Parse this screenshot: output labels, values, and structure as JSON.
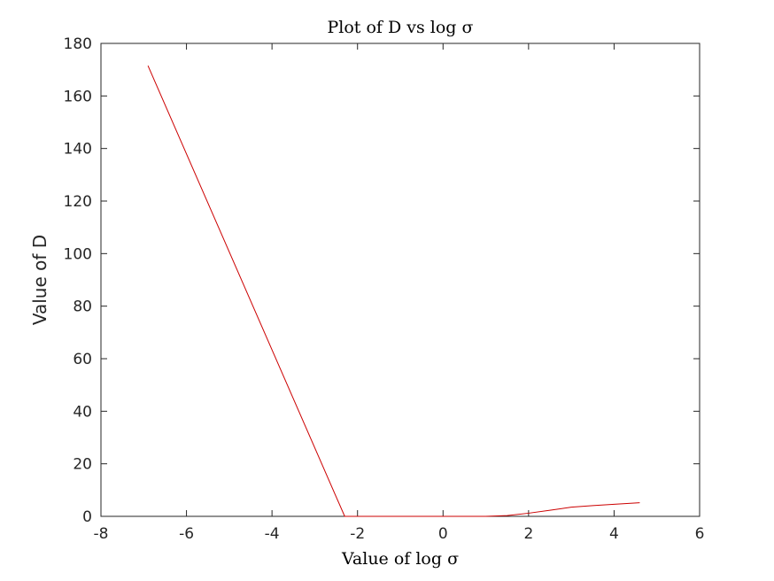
{
  "chart_data": {
    "type": "line",
    "title": "Plot of D vs log σ",
    "xlabel": "Value of log σ",
    "ylabel": "Value of D",
    "xlim": [
      -8,
      6
    ],
    "ylim": [
      0,
      180
    ],
    "xticks": [
      -8,
      -6,
      -4,
      -2,
      0,
      2,
      4,
      6
    ],
    "yticks": [
      0,
      20,
      40,
      60,
      80,
      100,
      120,
      140,
      160,
      180
    ],
    "grid": false,
    "legend": "none",
    "series": [
      {
        "color": "#cc0000",
        "x": [
          -6.9,
          -2.3,
          -1.0,
          0.0,
          1.0,
          1.5,
          2.0,
          2.5,
          3.0,
          3.5,
          4.0,
          4.6
        ],
        "y": [
          171.5,
          0,
          0,
          0,
          0,
          0.3,
          1.2,
          2.3,
          3.5,
          4.1,
          4.6,
          5.2
        ]
      }
    ]
  }
}
